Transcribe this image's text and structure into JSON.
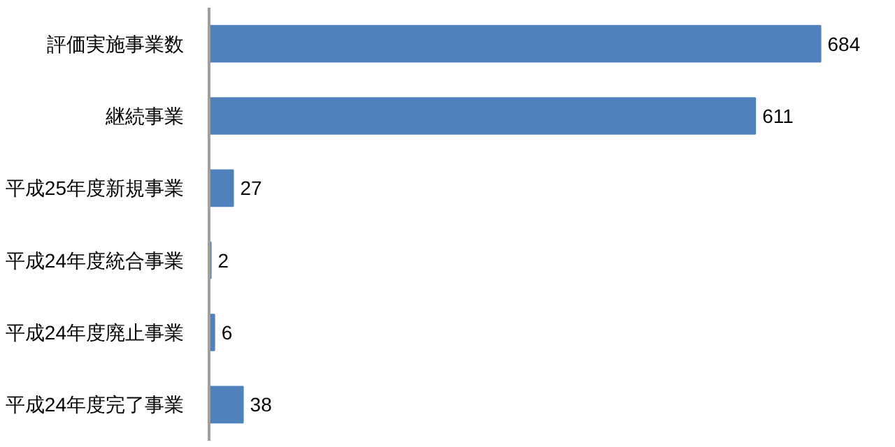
{
  "chart_data": {
    "type": "bar",
    "orientation": "horizontal",
    "categories": [
      "評価実施事業数",
      "継続事業",
      "平成25年度新規事業",
      "平成24年度統合事業",
      "平成24年度廃止事業",
      "平成24年度完了事業"
    ],
    "values": [
      684,
      611,
      27,
      2,
      6,
      38
    ],
    "color": "#4f81bd",
    "data_labels": true
  }
}
